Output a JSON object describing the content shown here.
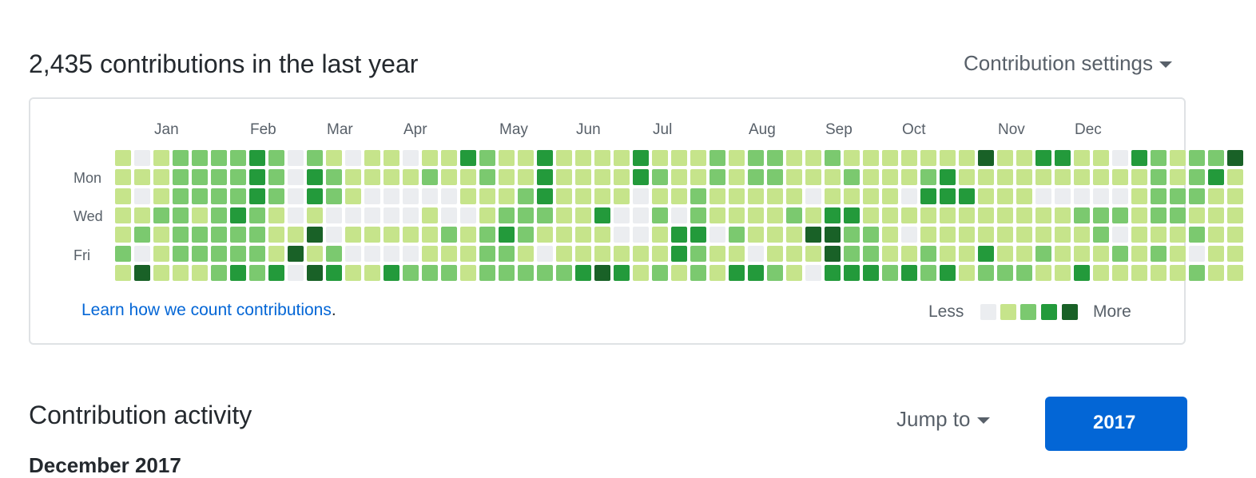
{
  "header": {
    "title": "2,435 contributions in the last year",
    "settings_label": "Contribution settings"
  },
  "calendar": {
    "months": [
      "Jan",
      "Feb",
      "Mar",
      "Apr",
      "May",
      "Jun",
      "Jul",
      "Aug",
      "Sep",
      "Oct",
      "Nov",
      "Dec"
    ],
    "day_labels": [
      "Mon",
      "Wed",
      "Fri"
    ],
    "colors": [
      "#ebedf0",
      "#c6e48b",
      "#7bc96f",
      "#239a3b",
      "#196127"
    ],
    "weeks": [
      "1111121",
      "0101204",
      "1112111",
      "2222221",
      "2221221",
      "2222222",
      "2223223",
      "3332222",
      "2221113",
      "0000140",
      "2331414",
      "1220023",
      "0110101",
      "1100101",
      "1100103",
      "0100102",
      "1201112",
      "1100212",
      "3110111",
      "2211222",
      "1112322",
      "1122212",
      "3332102",
      "1111112",
      "1111113",
      "1113114",
      "1110013",
      "3300011",
      "1212112",
      "1110331",
      "1122322",
      "2211011",
      "1111213",
      "2211103",
      "2211112",
      "1112111",
      "1101410",
      "2113443",
      "1213223",
      "1111223",
      "1111112",
      "1101013",
      "1231122",
      "1331113",
      "1131111",
      "4111132",
      "1111112",
      "1111112",
      "3101121",
      "3101111",
      "1102113",
      "1102211",
      "0102021",
      "3111111",
      "2222121",
      "1122111",
      "2221202",
      "2311111",
      "4111111"
    ],
    "learn_link": "Learn how we count contributions",
    "learn_period": ".",
    "legend_less": "Less",
    "legend_more": "More"
  },
  "activity": {
    "title": "Contribution activity",
    "jump_label": "Jump to",
    "year_button": "2017",
    "section_heading": "December 2017"
  }
}
